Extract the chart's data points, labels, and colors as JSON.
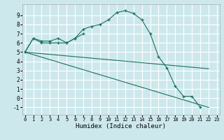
{
  "xlabel": "Humidex (Indice chaleur)",
  "background_color": "#cde8ec",
  "grid_color": "#ffffff",
  "line_color": "#1a7060",
  "lines": [
    {
      "x": [
        0,
        1,
        2,
        3,
        4,
        5,
        6,
        7,
        8,
        9,
        10,
        11,
        12,
        13,
        14,
        15,
        16,
        17,
        18,
        19,
        20,
        21,
        22
      ],
      "y": [
        5.0,
        6.5,
        6.0,
        6.0,
        6.0,
        6.0,
        6.5,
        7.5,
        7.8,
        8.0,
        8.5,
        9.3,
        9.5,
        9.2,
        8.5,
        7.0,
        4.5,
        3.3,
        1.3,
        0.2,
        0.2,
        -1.0,
        null
      ],
      "marker": true
    },
    {
      "x": [
        0,
        1,
        2,
        3,
        4,
        5,
        6,
        7
      ],
      "y": [
        5.0,
        6.5,
        6.2,
        6.2,
        6.5,
        6.0,
        6.5,
        7.0
      ],
      "marker": true
    },
    {
      "x": [
        0,
        22
      ],
      "y": [
        5.0,
        -1.0
      ],
      "marker": false
    },
    {
      "x": [
        0,
        22
      ],
      "y": [
        5.0,
        3.2
      ],
      "marker": false
    }
  ],
  "xlim": [
    -0.3,
    23.3
  ],
  "ylim": [
    -1.8,
    10.2
  ],
  "yticks": [
    -1,
    0,
    1,
    2,
    3,
    4,
    5,
    6,
    7,
    8,
    9
  ],
  "xticks": [
    0,
    1,
    2,
    3,
    4,
    5,
    6,
    7,
    8,
    9,
    10,
    11,
    12,
    13,
    14,
    15,
    16,
    17,
    18,
    19,
    20,
    21,
    22,
    23
  ]
}
